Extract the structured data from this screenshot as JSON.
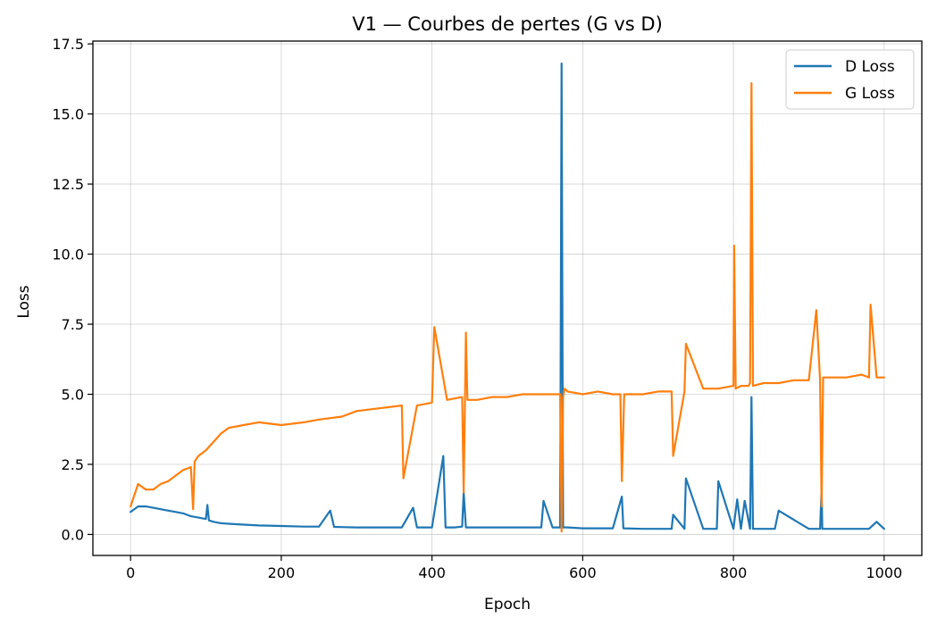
{
  "chart_data": {
    "type": "line",
    "title": "V1 — Courbes de pertes (G vs D)",
    "xlabel": "Epoch",
    "ylabel": "Loss",
    "xlim": [
      -50,
      1050
    ],
    "ylim": [
      -0.75,
      17.6
    ],
    "xticks": [
      0,
      200,
      400,
      600,
      800,
      1000
    ],
    "xtick_labels": [
      "0",
      "200",
      "400",
      "600",
      "800",
      "1000"
    ],
    "yticks": [
      0,
      2.5,
      5,
      7.5,
      10,
      12.5,
      15,
      17.5
    ],
    "ytick_labels": [
      "0.0",
      "2.5",
      "5.0",
      "7.5",
      "10.0",
      "12.5",
      "15.0",
      "17.5"
    ],
    "grid": true,
    "legend_position": "top-right",
    "series": [
      {
        "name": "D Loss",
        "color": "#1f77b4",
        "x": [
          0,
          10,
          20,
          30,
          40,
          50,
          60,
          70,
          80,
          90,
          100,
          102,
          104,
          110,
          120,
          130,
          150,
          170,
          200,
          230,
          250,
          265,
          270,
          300,
          330,
          360,
          375,
          380,
          400,
          415,
          418,
          430,
          440,
          442,
          445,
          460,
          500,
          545,
          548,
          560,
          570,
          572,
          574,
          576,
          580,
          600,
          640,
          652,
          654,
          680,
          700,
          718,
          720,
          735,
          737,
          760,
          778,
          780,
          800,
          805,
          810,
          815,
          822,
          824,
          826,
          830,
          855,
          860,
          900,
          915,
          917,
          918,
          920,
          950,
          980,
          990,
          1000
        ],
        "y": [
          0.8,
          1.0,
          1.0,
          0.95,
          0.9,
          0.85,
          0.8,
          0.75,
          0.65,
          0.6,
          0.55,
          1.05,
          0.5,
          0.45,
          0.4,
          0.38,
          0.35,
          0.32,
          0.3,
          0.28,
          0.28,
          0.85,
          0.27,
          0.25,
          0.25,
          0.25,
          0.95,
          0.25,
          0.25,
          2.8,
          0.25,
          0.25,
          0.28,
          1.5,
          0.25,
          0.25,
          0.25,
          0.25,
          1.2,
          0.25,
          0.25,
          16.8,
          0.25,
          0.25,
          0.25,
          0.22,
          0.22,
          1.35,
          0.22,
          0.2,
          0.2,
          0.2,
          0.7,
          0.2,
          2.0,
          0.2,
          0.2,
          1.9,
          0.2,
          1.25,
          0.2,
          1.2,
          0.2,
          4.9,
          0.2,
          0.2,
          0.2,
          0.85,
          0.2,
          0.2,
          1.6,
          0.2,
          0.2,
          0.2,
          0.2,
          0.45,
          0.2
        ]
      },
      {
        "name": "G Loss",
        "color": "#ff7f0e",
        "x": [
          0,
          10,
          20,
          30,
          40,
          50,
          60,
          70,
          80,
          83,
          85,
          90,
          100,
          110,
          120,
          130,
          150,
          170,
          200,
          230,
          250,
          280,
          300,
          330,
          360,
          362,
          380,
          400,
          403,
          420,
          440,
          442,
          445,
          447,
          460,
          480,
          500,
          520,
          540,
          560,
          570,
          572,
          574,
          576,
          580,
          600,
          620,
          640,
          650,
          652,
          655,
          680,
          700,
          718,
          720,
          735,
          737,
          760,
          780,
          800,
          801,
          803,
          810,
          820,
          822,
          824,
          826,
          840,
          860,
          880,
          900,
          910,
          915,
          917,
          919,
          930,
          950,
          970,
          980,
          982,
          990,
          1000
        ],
        "y": [
          1.0,
          1.8,
          1.6,
          1.6,
          1.8,
          1.9,
          2.1,
          2.3,
          2.4,
          0.9,
          2.6,
          2.8,
          3.0,
          3.3,
          3.6,
          3.8,
          3.9,
          4.0,
          3.9,
          4.0,
          4.1,
          4.2,
          4.4,
          4.5,
          4.6,
          2.0,
          4.6,
          4.7,
          7.4,
          4.8,
          4.9,
          1.5,
          7.2,
          4.8,
          4.8,
          4.9,
          4.9,
          5.0,
          5.0,
          5.0,
          5.0,
          0.1,
          4.9,
          5.2,
          5.1,
          5.0,
          5.1,
          5.0,
          5.0,
          1.9,
          5.0,
          5.0,
          5.1,
          5.1,
          2.8,
          5.1,
          6.8,
          5.2,
          5.2,
          5.3,
          10.3,
          5.2,
          5.3,
          5.3,
          5.4,
          16.1,
          5.3,
          5.4,
          5.4,
          5.5,
          5.5,
          8.0,
          5.5,
          1.0,
          5.6,
          5.6,
          5.6,
          5.7,
          5.6,
          8.2,
          5.6,
          5.6
        ]
      }
    ]
  }
}
